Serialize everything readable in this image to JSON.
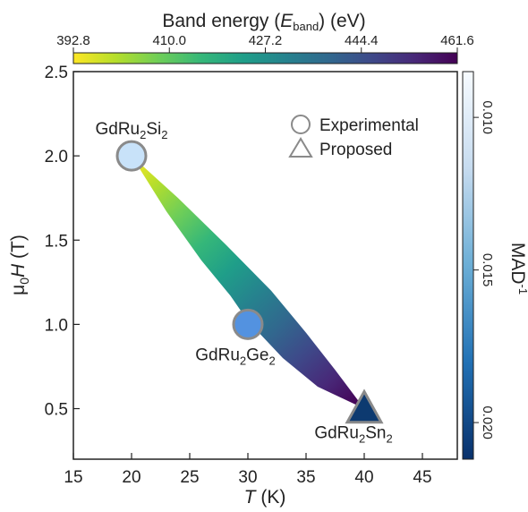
{
  "chart_data": {
    "type": "scatter",
    "xlabel_italic": "T",
    "xlabel_unit": " (K)",
    "ylabel_prefix": "μ",
    "ylabel_sub": "0",
    "ylabel_italic": "H",
    "ylabel_unit": " (T)",
    "xlim": [
      15,
      48
    ],
    "ylim": [
      0.2,
      2.5
    ],
    "xticks": [
      15,
      20,
      25,
      30,
      35,
      40,
      45
    ],
    "yticks": [
      0.5,
      1.0,
      1.5,
      2.0,
      2.5
    ],
    "xtick_labels": [
      "15",
      "20",
      "25",
      "30",
      "35",
      "40",
      "45"
    ],
    "ytick_labels": [
      "0.5",
      "1.0",
      "1.5",
      "2.0",
      "2.5"
    ],
    "points": [
      {
        "name": "GdRu2Si2",
        "label_base": "GdRu",
        "label_sub1": "2",
        "label_mid": "Si",
        "label_sub2": "2",
        "x": 20,
        "y": 2.0,
        "marker": "circle",
        "color": "#c8e2f9",
        "mad_inv": 0.0105
      },
      {
        "name": "GdRu2Ge2",
        "label_base": "GdRu",
        "label_sub1": "2",
        "label_mid": "Ge",
        "label_sub2": "2",
        "x": 30,
        "y": 1.0,
        "marker": "circle",
        "color": "#5392e0",
        "mad_inv": 0.0165
      },
      {
        "name": "GdRu2Sn2",
        "label_base": "GdRu",
        "label_sub1": "2",
        "label_mid": "Sn",
        "label_sub2": "2",
        "x": 40,
        "y": 0.5,
        "marker": "triangle",
        "color": "#0d3a70",
        "mad_inv": 0.0205
      }
    ],
    "band": {
      "upper": [
        [
          20,
          2.0
        ],
        [
          24,
          1.75
        ],
        [
          28,
          1.48
        ],
        [
          32,
          1.2
        ],
        [
          35,
          0.95
        ],
        [
          37.5,
          0.73
        ],
        [
          40,
          0.5
        ]
      ],
      "lower": [
        [
          20,
          2.0
        ],
        [
          23,
          1.67
        ],
        [
          26,
          1.38
        ],
        [
          28.5,
          1.17
        ],
        [
          30,
          1.02
        ],
        [
          33,
          0.8
        ],
        [
          36,
          0.63
        ],
        [
          40,
          0.5
        ]
      ]
    },
    "legend": [
      {
        "marker": "circle",
        "label": "Experimental"
      },
      {
        "marker": "triangle",
        "label": "Proposed"
      }
    ],
    "top_colorbar": {
      "title_prefix": "Band energy (",
      "title_italic": "E",
      "title_sub": "band",
      "title_suffix": ") (eV)",
      "range": [
        392.8,
        461.6
      ],
      "ticks": [
        "392.8",
        "410.0",
        "427.2",
        "444.4",
        "461.6"
      ],
      "colormap": "viridis_r",
      "colors": [
        "#fde725",
        "#b5de2b",
        "#6ece58",
        "#35b779",
        "#1f9e89",
        "#26828e",
        "#31688e",
        "#3e4989",
        "#482878",
        "#440154"
      ]
    },
    "right_colorbar": {
      "title_base": "MAD",
      "title_sup": "-1",
      "ticks": [
        "0.010",
        "0.015",
        "0.020"
      ],
      "tick_values": [
        0.01,
        0.015,
        0.02
      ],
      "range": [
        0.0085,
        0.0212
      ],
      "colors": [
        "#f7fbff",
        "#c6dbef",
        "#6baed6",
        "#2171b5",
        "#08306b"
      ]
    }
  }
}
